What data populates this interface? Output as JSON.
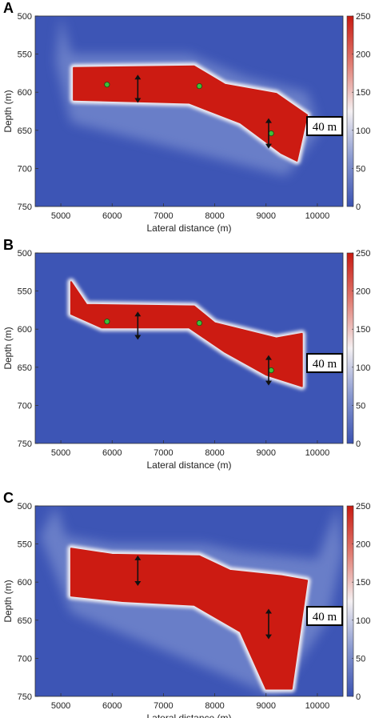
{
  "chart_data": [
    {
      "type": "heatmap",
      "panel_label": "A",
      "xlabel": "Lateral distance (m)",
      "ylabel": "Depth (m)",
      "xlim": [
        4500,
        10500
      ],
      "ylim": [
        500,
        750
      ],
      "y_reversed": true,
      "xticks": [
        "5000",
        "6000",
        "7000",
        "8000",
        "9000",
        "10000"
      ],
      "yticks": [
        "500",
        "550",
        "600",
        "650",
        "700",
        "750"
      ],
      "colorbar": {
        "range": [
          0,
          250
        ],
        "ticks": [
          "0",
          "50",
          "100",
          "150",
          "200",
          "250"
        ]
      },
      "body_top": [
        [
          5250,
          568
        ],
        [
          7600,
          566
        ],
        [
          8200,
          590
        ],
        [
          9200,
          602
        ],
        [
          9800,
          630
        ]
      ],
      "body_bottom": [
        [
          5250,
          610
        ],
        [
          7500,
          614
        ],
        [
          8500,
          640
        ],
        [
          9300,
          680
        ],
        [
          9600,
          690
        ]
      ],
      "halo_profile": [
        [
          5000,
          500
        ],
        [
          5200,
          550
        ],
        [
          7500,
          550
        ],
        [
          8600,
          580
        ],
        [
          9800,
          600
        ],
        [
          10050,
          650
        ],
        [
          9400,
          710
        ],
        [
          5200,
          640
        ],
        [
          4900,
          560
        ]
      ],
      "points": [
        [
          5900,
          590
        ],
        [
          7700,
          592
        ],
        [
          9100,
          654
        ]
      ],
      "arrows": [
        {
          "x": 6500,
          "y1": 577,
          "y2": 614
        },
        {
          "x": 9050,
          "y1": 634,
          "y2": 674
        }
      ],
      "annotation": "40 m"
    },
    {
      "type": "heatmap",
      "panel_label": "B",
      "xlabel": "Lateral distance (m)",
      "ylabel": "Depth (m)",
      "xlim": [
        4500,
        10500
      ],
      "ylim": [
        500,
        750
      ],
      "y_reversed": true,
      "xticks": [
        "5000",
        "6000",
        "7000",
        "8000",
        "9000",
        "10000"
      ],
      "yticks": [
        "500",
        "550",
        "600",
        "650",
        "700",
        "750"
      ],
      "colorbar": {
        "range": [
          0,
          250
        ],
        "ticks": [
          "0",
          "50",
          "100",
          "150",
          "200",
          "250"
        ]
      },
      "body_top": [
        [
          5200,
          538
        ],
        [
          5500,
          568
        ],
        [
          7600,
          570
        ],
        [
          8000,
          592
        ],
        [
          9200,
          612
        ],
        [
          9700,
          606
        ]
      ],
      "body_bottom": [
        [
          5200,
          580
        ],
        [
          5800,
          598
        ],
        [
          7500,
          598
        ],
        [
          8200,
          630
        ],
        [
          9000,
          660
        ],
        [
          9700,
          675
        ]
      ],
      "halo_profile": [],
      "points": [
        [
          5900,
          590
        ],
        [
          7700,
          592
        ],
        [
          9100,
          654
        ]
      ],
      "arrows": [
        {
          "x": 6500,
          "y1": 577,
          "y2": 614
        },
        {
          "x": 9050,
          "y1": 634,
          "y2": 674
        }
      ],
      "annotation": "40 m"
    },
    {
      "type": "heatmap",
      "panel_label": "C",
      "xlabel": "Lateral distance (m)",
      "ylabel": "Depth (m)",
      "xlim": [
        4500,
        10500
      ],
      "ylim": [
        500,
        750
      ],
      "y_reversed": true,
      "xticks": [
        "5000",
        "6000",
        "7000",
        "8000",
        "9000",
        "10000"
      ],
      "yticks": [
        "500",
        "550",
        "600",
        "650",
        "700",
        "750"
      ],
      "colorbar": {
        "range": [
          0,
          250
        ],
        "ticks": [
          "0",
          "50",
          "100",
          "150",
          "200",
          "250"
        ]
      },
      "body_top": [
        [
          5200,
          556
        ],
        [
          6000,
          564
        ],
        [
          7700,
          566
        ],
        [
          8300,
          585
        ],
        [
          9300,
          592
        ],
        [
          9800,
          598
        ]
      ],
      "body_bottom": [
        [
          5200,
          618
        ],
        [
          6200,
          625
        ],
        [
          7600,
          630
        ],
        [
          8500,
          665
        ],
        [
          9000,
          740
        ],
        [
          9500,
          740
        ]
      ],
      "halo_profile": [
        [
          4900,
          500
        ],
        [
          5100,
          540
        ],
        [
          6000,
          550
        ],
        [
          7800,
          550
        ],
        [
          8500,
          560
        ],
        [
          10000,
          570
        ],
        [
          10400,
          500
        ],
        [
          10500,
          560
        ],
        [
          10200,
          650
        ],
        [
          9200,
          750
        ],
        [
          5200,
          640
        ],
        [
          4600,
          540
        ]
      ],
      "points": [],
      "arrows": [
        {
          "x": 6500,
          "y1": 565,
          "y2": 605
        },
        {
          "x": 9050,
          "y1": 635,
          "y2": 675
        }
      ],
      "annotation": "40 m"
    }
  ],
  "colors": {
    "background": "#3d55b5",
    "body": "#cc1b12",
    "halo": "#f2f0f4",
    "point": "#3fbf3a",
    "colorbar_stops": [
      "#3a52b2",
      "#8898d0",
      "#f4f0f2",
      "#e07c72",
      "#c81910"
    ]
  }
}
